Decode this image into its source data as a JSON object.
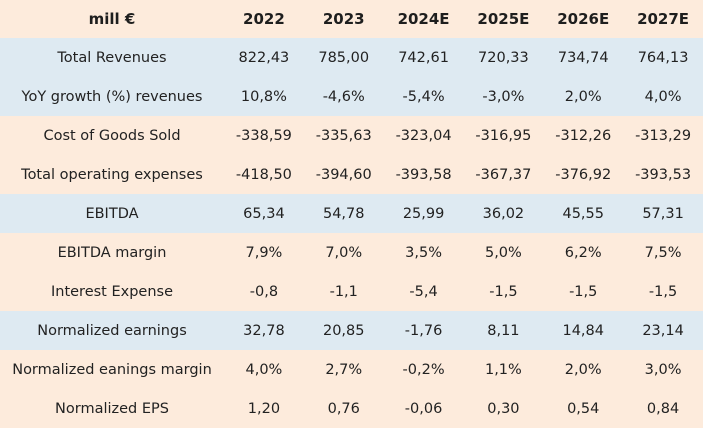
{
  "colors": {
    "header_bg": "#fdebdc",
    "band_blue": "#deeaf2",
    "band_peach": "#fdebdc",
    "text": "#222222"
  },
  "table": {
    "header": [
      "mill €",
      "2022",
      "2023",
      "2024E",
      "2025E",
      "2026E",
      "2027E"
    ],
    "rows": [
      {
        "label": "Total Revenues",
        "band": "blue",
        "values": [
          "822,43",
          "785,00",
          "742,61",
          "720,33",
          "734,74",
          "764,13"
        ]
      },
      {
        "label": "YoY growth (%) revenues",
        "band": "blue",
        "values": [
          "10,8%",
          "-4,6%",
          "-5,4%",
          "-3,0%",
          "2,0%",
          "4,0%"
        ]
      },
      {
        "label": "Cost of Goods Sold",
        "band": "peach",
        "values": [
          "-338,59",
          "-335,63",
          "-323,04",
          "-316,95",
          "-312,26",
          "-313,29"
        ]
      },
      {
        "label": "Total operating expenses",
        "band": "peach",
        "values": [
          "-418,50",
          "-394,60",
          "-393,58",
          "-367,37",
          "-376,92",
          "-393,53"
        ]
      },
      {
        "label": "EBITDA",
        "band": "blue",
        "values": [
          "65,34",
          "54,78",
          "25,99",
          "36,02",
          "45,55",
          "57,31"
        ]
      },
      {
        "label": "EBITDA margin",
        "band": "peach",
        "values": [
          "7,9%",
          "7,0%",
          "3,5%",
          "5,0%",
          "6,2%",
          "7,5%"
        ]
      },
      {
        "label": "Interest Expense",
        "band": "peach",
        "values": [
          "-0,8",
          "-1,1",
          "-5,4",
          "-1,5",
          "-1,5",
          "-1,5"
        ]
      },
      {
        "label": "Normalized earnings",
        "band": "blue",
        "values": [
          "32,78",
          "20,85",
          "-1,76",
          "8,11",
          "14,84",
          "23,14"
        ]
      },
      {
        "label": "Normalized eanings margin",
        "band": "peach",
        "values": [
          "4,0%",
          "2,7%",
          "-0,2%",
          "1,1%",
          "2,0%",
          "3,0%"
        ]
      },
      {
        "label": "Normalized EPS",
        "band": "peach",
        "values": [
          "1,20",
          "0,76",
          "-0,06",
          "0,30",
          "0,54",
          "0,84"
        ]
      }
    ]
  }
}
